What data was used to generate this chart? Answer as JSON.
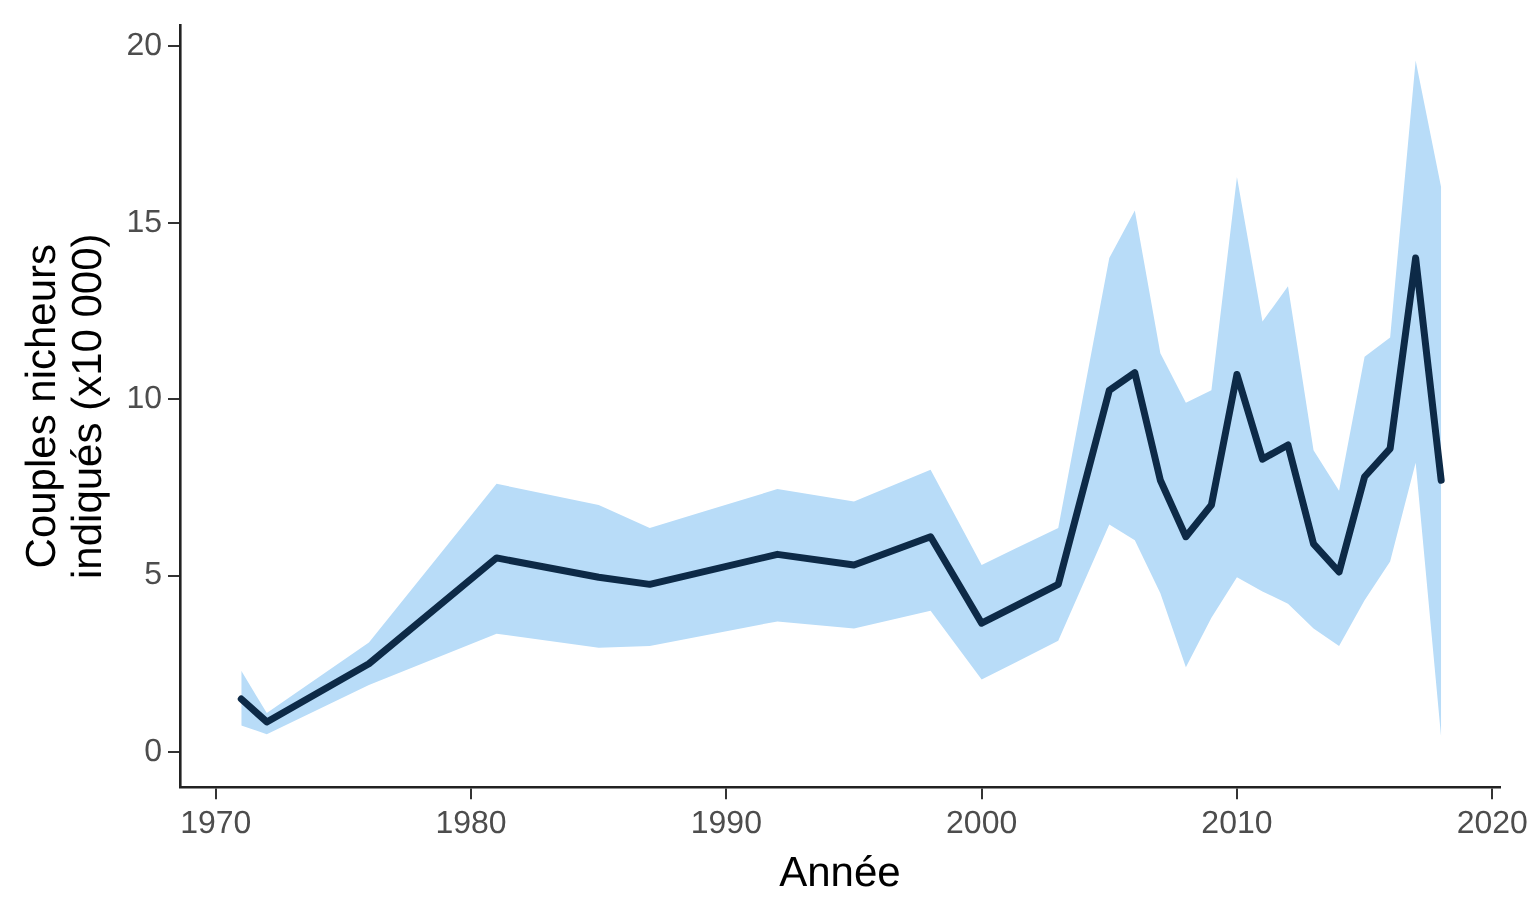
{
  "chart_data": {
    "type": "line",
    "xlabel": "Année",
    "ylabel": "Couples nicheurs\nindiqués (x10 000)",
    "x": [
      1971,
      1972,
      1976,
      1981,
      1985,
      1987,
      1992,
      1995,
      1998,
      2000,
      2003,
      2005,
      2006,
      2007,
      2008,
      2009,
      2010,
      2011,
      2012,
      2013,
      2014,
      2015,
      2016,
      2017,
      2018
    ],
    "series": [
      {
        "color": "#0d2a47",
        "values": [
          1.5,
          0.85,
          2.5,
          5.5,
          4.95,
          4.75,
          5.6,
          5.3,
          6.1,
          3.65,
          4.75,
          10.25,
          10.75,
          7.7,
          6.1,
          7.0,
          10.7,
          8.3,
          8.7,
          5.9,
          5.1,
          7.8,
          8.6,
          14.0,
          7.7
        ],
        "lower": [
          0.75,
          0.5,
          1.9,
          3.35,
          2.95,
          3.0,
          3.7,
          3.5,
          4.0,
          2.05,
          3.15,
          6.45,
          6.0,
          4.5,
          2.4,
          3.8,
          4.95,
          4.55,
          4.2,
          3.5,
          3.0,
          4.3,
          5.4,
          8.2,
          0.4
        ],
        "upper": [
          2.3,
          1.1,
          3.1,
          7.6,
          7.0,
          6.35,
          7.45,
          7.1,
          8.0,
          5.3,
          6.35,
          14.0,
          15.35,
          11.3,
          9.9,
          10.25,
          16.3,
          12.2,
          13.2,
          8.55,
          7.4,
          11.2,
          11.75,
          19.6,
          16.0
        ]
      }
    ],
    "xlim": [
      1968.6,
      2020.3
    ],
    "xticks": [
      1970,
      1980,
      1990,
      2000,
      2010,
      2020
    ],
    "ylim": [
      -1,
      20.6
    ],
    "yticks": [
      0,
      5,
      10,
      15,
      20
    ],
    "grid": false,
    "legend": false,
    "marker": "none",
    "line_style": "solid"
  }
}
